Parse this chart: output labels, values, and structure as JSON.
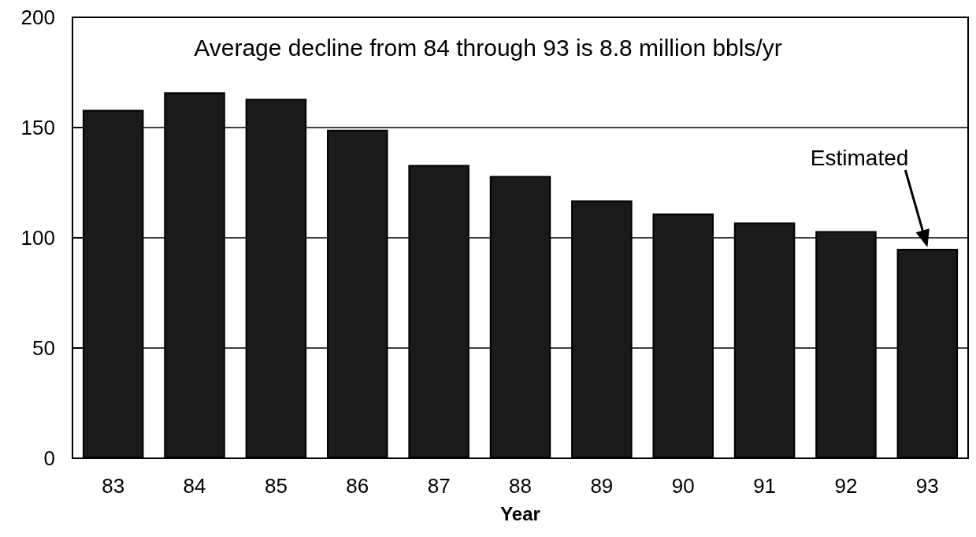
{
  "chart_data": {
    "type": "bar",
    "xlabel": "Year",
    "categories": [
      "83",
      "84",
      "85",
      "86",
      "87",
      "88",
      "89",
      "90",
      "91",
      "92",
      "93"
    ],
    "values": [
      158,
      166,
      163,
      149,
      133,
      128,
      117,
      111,
      107,
      103,
      95
    ],
    "color": "#1a1a1a",
    "ylim": [
      0,
      200
    ],
    "yticks": [
      0,
      50,
      100,
      150,
      200
    ],
    "grid": "y",
    "annotations": [
      "Average decline from 84 through 93 is 8.8 million bbls/yr",
      "Estimated"
    ]
  }
}
